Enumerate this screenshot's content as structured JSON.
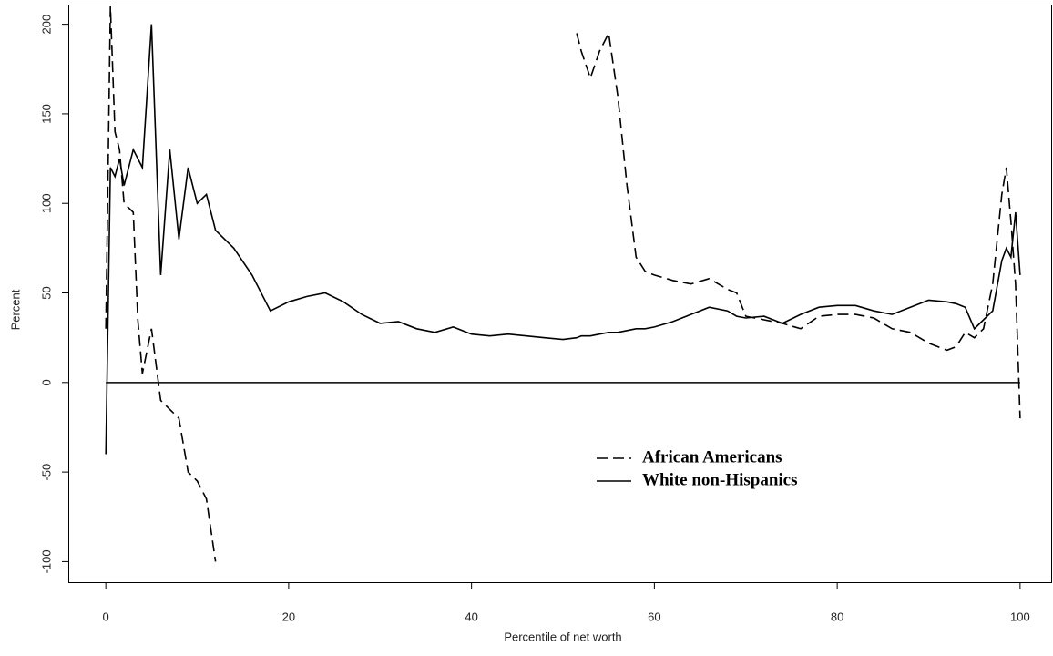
{
  "chart_data": {
    "type": "line",
    "x": [
      0,
      0.5,
      1,
      1.5,
      2,
      3,
      3.5,
      4,
      5,
      6,
      7,
      8,
      9,
      10,
      11,
      12,
      14,
      16,
      18,
      20,
      22,
      24,
      26,
      28,
      30,
      32,
      34,
      36,
      38,
      40,
      42,
      44,
      46,
      48,
      50,
      51.5,
      52,
      53,
      54,
      55,
      56,
      57,
      58,
      59,
      60,
      62,
      64,
      66,
      68,
      69,
      70,
      72,
      74,
      76,
      78,
      80,
      82,
      84,
      86,
      88,
      90,
      92,
      93,
      94,
      95,
      96,
      97,
      98,
      98.5,
      99,
      99.5,
      100
    ],
    "series": [
      {
        "name": "African Americans",
        "color": "#000000",
        "dash": "dashed",
        "values": [
          30,
          210,
          140,
          130,
          100,
          95,
          35,
          5,
          30,
          -10,
          -15,
          -20,
          -50,
          -55,
          -65,
          -100,
          null,
          null,
          null,
          null,
          null,
          null,
          null,
          null,
          null,
          null,
          null,
          null,
          null,
          null,
          null,
          null,
          null,
          null,
          null,
          195,
          185,
          170,
          185,
          195,
          160,
          110,
          70,
          62,
          60,
          57,
          55,
          58,
          52,
          50,
          37,
          35,
          33,
          30,
          37,
          38,
          38,
          36,
          30,
          28,
          22,
          18,
          20,
          28,
          25,
          30,
          55,
          105,
          120,
          90,
          55,
          -20
        ]
      },
      {
        "name": "White non-Hispanics",
        "color": "#000000",
        "dash": "solid",
        "values": [
          -40,
          120,
          115,
          125,
          110,
          130,
          125,
          120,
          200,
          60,
          130,
          80,
          120,
          100,
          105,
          85,
          75,
          60,
          40,
          45,
          48,
          50,
          45,
          38,
          33,
          34,
          30,
          28,
          31,
          27,
          26,
          27,
          26,
          25,
          24,
          25,
          26,
          26,
          27,
          28,
          28,
          29,
          30,
          30,
          31,
          34,
          38,
          42,
          40,
          37,
          36,
          37,
          33,
          38,
          42,
          43,
          43,
          40,
          38,
          42,
          46,
          45,
          44,
          42,
          30,
          35,
          40,
          68,
          75,
          70,
          95,
          60
        ]
      }
    ],
    "xlabel": "Percentile of net worth",
    "ylabel": "Percent",
    "xlim": [
      -4.1,
      103.5
    ],
    "ylim": [
      -112,
      211
    ],
    "xticks": [
      0,
      20,
      40,
      60,
      80,
      100
    ],
    "yticks": [
      -100,
      -50,
      0,
      50,
      100,
      150,
      200
    ],
    "hline": 0,
    "legend": "lower right"
  }
}
